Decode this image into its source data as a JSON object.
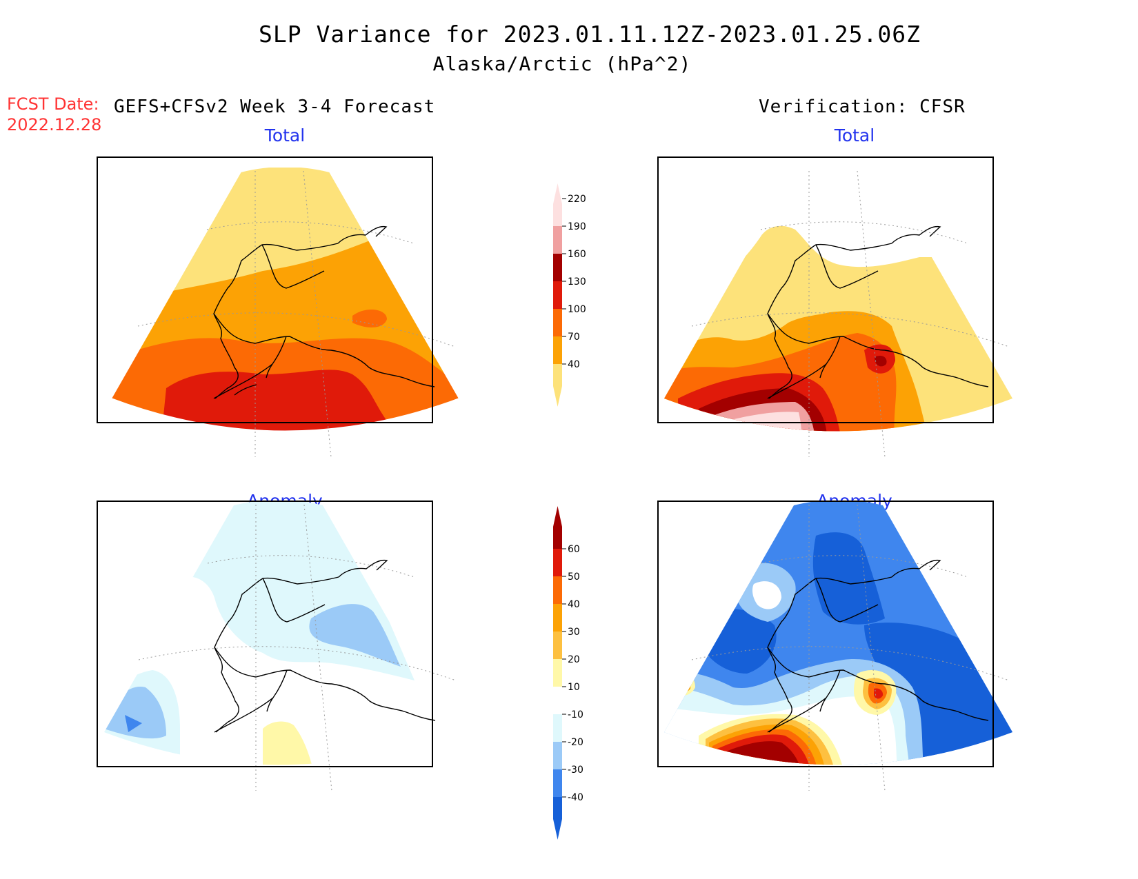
{
  "header": {
    "title": "SLP Variance for 2023.01.11.12Z-2023.01.25.06Z",
    "subtitle": "Alaska/Arctic (hPa^2)",
    "fcst_label": "FCST Date:",
    "fcst_date": "2022.12.28",
    "forecast_label": "GEFS+CFSv2 Week 3-4 Forecast",
    "verification_label": "Verification: CFSR"
  },
  "panels": {
    "fcst_total": {
      "title": "Total"
    },
    "verif_total": {
      "title": "Total"
    },
    "fcst_anom": {
      "title": "Anomaly"
    },
    "verif_anom": {
      "title": "Anomaly"
    }
  },
  "colorbars": {
    "total": {
      "labels": [
        "40",
        "70",
        "100",
        "130",
        "160",
        "190",
        "220"
      ],
      "colors": [
        "#fde27a",
        "#fca205",
        "#fc6a05",
        "#e01a0a",
        "#a30000",
        "#f0a0a0",
        "#fde0e0"
      ]
    },
    "anomaly": {
      "labels": [
        "-40",
        "-30",
        "-20",
        "-10",
        "10",
        "20",
        "30",
        "40",
        "50",
        "60"
      ],
      "colors": [
        "#1660d8",
        "#3f86ee",
        "#9bcaf7",
        "#dff8fc",
        "#ffffff",
        "#fff8a8",
        "#fdc040",
        "#fca205",
        "#fc6a05",
        "#e01a0a",
        "#a30000"
      ]
    }
  },
  "colors": {
    "title_blue": "#2233ee",
    "fcst_red": "#ff3333"
  }
}
